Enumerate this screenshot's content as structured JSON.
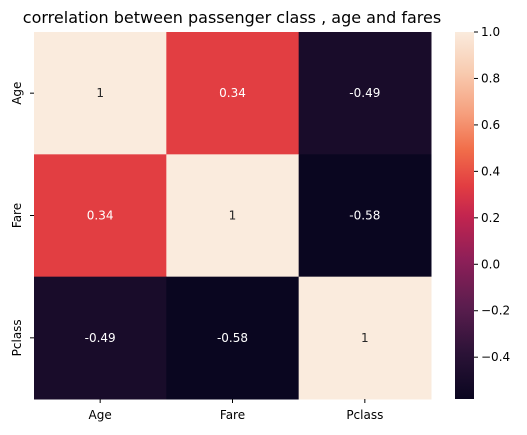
{
  "chart_data": {
    "type": "heatmap",
    "title": "correlation between passenger class , age and fares",
    "rows": [
      "Age",
      "Fare",
      "Pclass"
    ],
    "columns": [
      "Age",
      "Fare",
      "Pclass"
    ],
    "values": [
      [
        1,
        0.34,
        -0.49
      ],
      [
        0.34,
        1,
        -0.58
      ],
      [
        -0.49,
        -0.58,
        1
      ]
    ],
    "annotations": [
      [
        "1",
        "0.34",
        "-0.49"
      ],
      [
        "0.34",
        "1",
        "-0.58"
      ],
      [
        "-0.49",
        "-0.58",
        "1"
      ]
    ],
    "colorbar": {
      "range": [
        -0.58,
        1
      ],
      "ticks": [
        1.0,
        0.8,
        0.6,
        0.4,
        0.2,
        0.0,
        -0.2,
        -0.4
      ],
      "tick_labels": [
        "1.0",
        "0.8",
        "0.6",
        "0.4",
        "0.2",
        "0.0",
        "−0.2",
        "−0.4"
      ]
    },
    "colormap": "rocket",
    "colors": {
      "min": "#0a0620",
      "max": "#faebdd"
    }
  }
}
